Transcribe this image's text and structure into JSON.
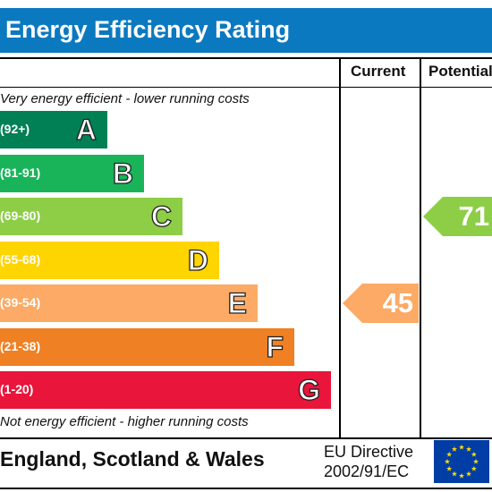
{
  "header": {
    "title": "Energy Efficiency Rating"
  },
  "columns": {
    "current": "Current",
    "potential": "Potential"
  },
  "notes": {
    "top": "Very energy efficient - lower running costs",
    "bottom": "Not energy efficient - higher running costs"
  },
  "chart_data": {
    "type": "bar",
    "title": "Energy Efficiency Rating",
    "bands": [
      {
        "letter": "A",
        "range": "(92+)",
        "color": "#008054"
      },
      {
        "letter": "B",
        "range": "(81-91)",
        "color": "#19b459"
      },
      {
        "letter": "C",
        "range": "(69-80)",
        "color": "#8dce46"
      },
      {
        "letter": "D",
        "range": "(55-68)",
        "color": "#ffd500"
      },
      {
        "letter": "E",
        "range": "(39-54)",
        "color": "#fcaa65"
      },
      {
        "letter": "F",
        "range": "(21-38)",
        "color": "#ef8023"
      },
      {
        "letter": "G",
        "range": "(1-20)",
        "color": "#e9153b"
      }
    ],
    "ratings": [
      {
        "column": "Current",
        "value": 45,
        "band": "E",
        "color": "#fcaa65"
      },
      {
        "column": "Potential",
        "value": 71,
        "band": "C",
        "color": "#8dce46"
      }
    ]
  },
  "footer": {
    "region": "England, Scotland & Wales",
    "directive_line1": "EU Directive",
    "directive_line2": "2002/91/EC",
    "flag_icon": "eu-flag-icon"
  }
}
